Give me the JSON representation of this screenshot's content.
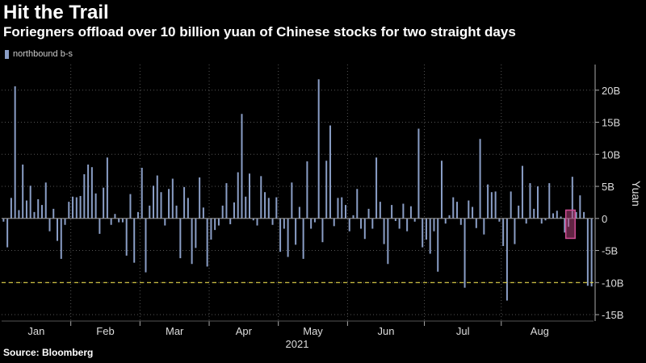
{
  "header": {
    "title": "Hit the Trail",
    "subtitle": "Foriegners offload over 10 billion yuan of Chinese stocks for two straight days"
  },
  "legend": {
    "label": "northbound b-s",
    "color": "#8a9ec6"
  },
  "footer": {
    "source": "Source: Bloomberg"
  },
  "chart_data": {
    "type": "bar",
    "title": "Hit the Trail",
    "subtitle": "Foriegners offload over 10 billion yuan of Chinese stocks for two straight days",
    "ylabel": "Yuan",
    "xlabel": "2021",
    "ylim": [
      -16,
      24
    ],
    "y_ticks": [
      20,
      15,
      10,
      5,
      0,
      -5,
      -10,
      -15
    ],
    "y_tick_labels": [
      "20B",
      "15B",
      "10B",
      "5B",
      "0",
      "-5B",
      "-10B",
      "-15B"
    ],
    "x_tick_labels": [
      "Jan",
      "Feb",
      "Mar",
      "Apr",
      "May",
      "Jun",
      "Jul",
      "Aug"
    ],
    "x_year_label": "2021",
    "reference_line": {
      "value": -10,
      "style": "dashed",
      "color": "#e6d84a"
    },
    "highlight": {
      "from_index": 147,
      "to_index": 148,
      "color": "#b0427a"
    },
    "bar_color": "#8a9ec6",
    "grid": true,
    "legend_position": "top-left",
    "series": [
      {
        "name": "northbound b-s",
        "values": [
          -0.5,
          -4.5,
          3.2,
          20.6,
          1.3,
          8.4,
          2.8,
          5.1,
          1.0,
          3.0,
          2.1,
          5.6,
          -2.0,
          1.5,
          -3.5,
          -6.3,
          -1.0,
          2.6,
          3.4,
          3.3,
          3.5,
          6.9,
          8.4,
          8.0,
          3.9,
          -2.4,
          4.8,
          9.5,
          -1.0,
          0.7,
          -0.6,
          -0.6,
          -5.8,
          3.8,
          -6.9,
          1.0,
          7.9,
          -8.4,
          2.0,
          5.1,
          6.7,
          4.1,
          -1.1,
          4.6,
          6.2,
          2.0,
          -6.2,
          4.9,
          3.2,
          -7.1,
          -4.6,
          6.4,
          1.7,
          -7.5,
          -3.3,
          -1.8,
          -1.1,
          2.0,
          5.5,
          -0.9,
          2.5,
          7.2,
          16.3,
          3.4,
          7.0,
          -0.3,
          -1.1,
          6.6,
          4.1,
          3.2,
          -1.0,
          3.3,
          -5.2,
          -1.6,
          -6.0,
          5.6,
          -4.1,
          1.8,
          -6.3,
          8.9,
          -1.6,
          -0.6,
          21.7,
          -3.7,
          9.0,
          14.5,
          -1.2,
          3.2,
          3.3,
          2.1,
          -2.0,
          0.5,
          4.6,
          -1.6,
          -3.2,
          1.5,
          -1.6,
          9.5,
          2.6,
          -4.0,
          -7.1,
          2.1,
          -0.4,
          -1.6,
          2.3,
          -2.0,
          1.9,
          -0.5,
          14.0,
          -4.5,
          -3.3,
          -5.5,
          -2.0,
          -8.3,
          9.0,
          -0.8,
          0.5,
          3.3,
          2.6,
          -1.0,
          -10.8,
          2.8,
          1.8,
          -1.5,
          12.4,
          -2.5,
          5.3,
          4.1,
          4.2,
          -0.5,
          -4.3,
          -12.8,
          4.2,
          -4.0,
          2.0,
          8.2,
          -0.8,
          5.5,
          1.5,
          5.0,
          -0.8,
          -0.3,
          5.5,
          0.8,
          1.2,
          0.3,
          -2.2,
          -1.3,
          6.5,
          1.0,
          3.6,
          1.0,
          -10.5,
          -10.6
        ]
      }
    ]
  }
}
